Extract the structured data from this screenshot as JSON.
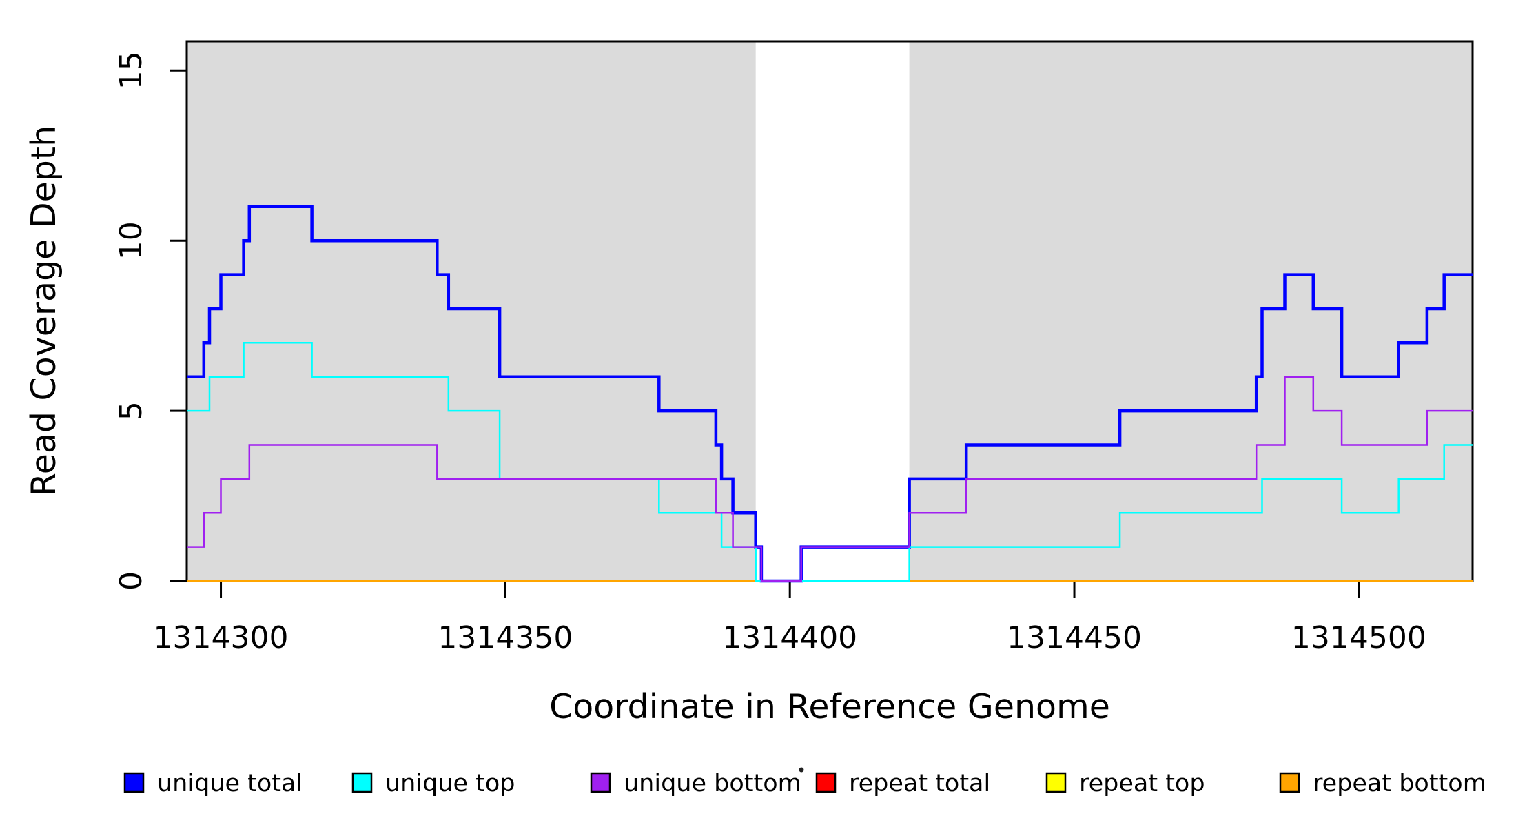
{
  "chart_data": {
    "type": "line",
    "subtype": "step",
    "title": "",
    "xlabel": "Coordinate in Reference Genome",
    "ylabel": "Read Coverage Depth",
    "xlim": [
      1314294,
      1314520
    ],
    "ylim": [
      0,
      15.85
    ],
    "grid": false,
    "x_ticks": [
      1314300,
      1314350,
      1314400,
      1314450,
      1314500
    ],
    "x_tick_labels": [
      "1314300",
      "1314350",
      "1314400",
      "1314450",
      "1314500"
    ],
    "y_ticks": [
      0,
      5,
      10,
      15
    ],
    "y_tick_labels": [
      "0",
      "5",
      "10",
      "15"
    ],
    "background_regions": {
      "description": "gray shaded coverage regions with white gap between",
      "color": "#DBDBDB",
      "intervals": [
        [
          1314294,
          1314394
        ],
        [
          1314421,
          1314520
        ]
      ]
    },
    "series": [
      {
        "name": "unique total",
        "color": "#0000FF",
        "width": 4.5,
        "steps": [
          [
            1314294,
            6
          ],
          [
            1314297,
            7
          ],
          [
            1314298,
            8
          ],
          [
            1314300,
            9
          ],
          [
            1314304,
            10
          ],
          [
            1314305,
            11
          ],
          [
            1314316,
            10
          ],
          [
            1314338,
            9
          ],
          [
            1314340,
            8
          ],
          [
            1314349,
            6
          ],
          [
            1314377,
            5
          ],
          [
            1314387,
            4
          ],
          [
            1314388,
            3
          ],
          [
            1314390,
            2
          ],
          [
            1314394,
            1
          ],
          [
            1314395,
            0
          ],
          [
            1314402,
            1
          ],
          [
            1314421,
            3
          ],
          [
            1314431,
            4
          ],
          [
            1314458,
            5
          ],
          [
            1314482,
            6
          ],
          [
            1314483,
            8
          ],
          [
            1314487,
            9
          ],
          [
            1314492,
            8
          ],
          [
            1314497,
            6
          ],
          [
            1314507,
            7
          ],
          [
            1314512,
            8
          ],
          [
            1314515,
            9
          ]
        ]
      },
      {
        "name": "unique top",
        "color": "#00FFFF",
        "width": 2.5,
        "steps": [
          [
            1314294,
            5
          ],
          [
            1314298,
            6
          ],
          [
            1314304,
            7
          ],
          [
            1314316,
            6
          ],
          [
            1314340,
            5
          ],
          [
            1314349,
            3
          ],
          [
            1314377,
            2
          ],
          [
            1314388,
            1
          ],
          [
            1314394,
            0
          ],
          [
            1314421,
            1
          ],
          [
            1314458,
            2
          ],
          [
            1314483,
            3
          ],
          [
            1314497,
            2
          ],
          [
            1314507,
            3
          ],
          [
            1314515,
            4
          ]
        ]
      },
      {
        "name": "unique bottom",
        "color": "#A020F0",
        "width": 2.5,
        "steps": [
          [
            1314294,
            1
          ],
          [
            1314297,
            2
          ],
          [
            1314300,
            3
          ],
          [
            1314305,
            4
          ],
          [
            1314338,
            3
          ],
          [
            1314387,
            2
          ],
          [
            1314390,
            1
          ],
          [
            1314395,
            0
          ],
          [
            1314402,
            1
          ],
          [
            1314421,
            2
          ],
          [
            1314431,
            3
          ],
          [
            1314482,
            4
          ],
          [
            1314487,
            6
          ],
          [
            1314492,
            5
          ],
          [
            1314497,
            4
          ],
          [
            1314512,
            5
          ]
        ]
      },
      {
        "name": "repeat total",
        "color": "#FF0000",
        "width": 2.5,
        "steps": [
          [
            1314294,
            0
          ]
        ]
      },
      {
        "name": "repeat top",
        "color": "#FFFF00",
        "width": 2.5,
        "steps": [
          [
            1314294,
            0
          ]
        ]
      },
      {
        "name": "repeat bottom",
        "color": "#FFA500",
        "width": 3.5,
        "steps": [
          [
            1314294,
            0
          ]
        ]
      }
    ],
    "draw_order": [
      "repeat total",
      "repeat top",
      "repeat bottom",
      "unique total",
      "unique top",
      "unique bottom"
    ],
    "legend": {
      "position": "bottom",
      "entries": [
        {
          "label": "unique total",
          "color": "#0000FF"
        },
        {
          "label": "unique top",
          "color": "#00FFFF"
        },
        {
          "label": "unique bottom",
          "color": "#A020F0"
        },
        {
          "label": "repeat total",
          "color": "#FF0000"
        },
        {
          "label": "repeat top",
          "color": "#FFFF00"
        },
        {
          "label": "repeat bottom",
          "color": "#FFA500"
        }
      ]
    }
  }
}
